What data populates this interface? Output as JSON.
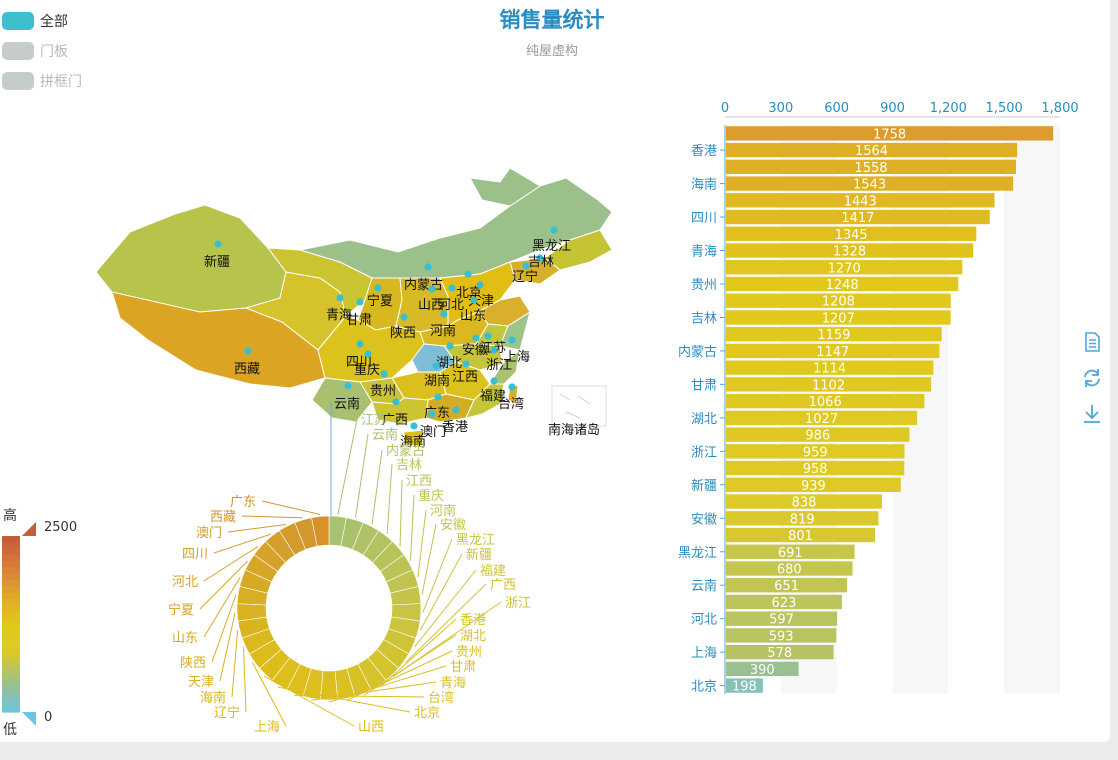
{
  "header": {
    "title": "销售量统计",
    "subtitle": "纯屋虚构"
  },
  "legend": [
    {
      "label": "全部",
      "color": "#3cc0cf",
      "active": true
    },
    {
      "label": "门板",
      "color": "#c5cccb",
      "active": false
    },
    {
      "label": "拼框门",
      "color": "#c5cccb",
      "active": false
    }
  ],
  "visual_map": {
    "min_label": "0",
    "max_label": "2500",
    "high_text": "高",
    "low_text": "低"
  },
  "toolbox": [
    {
      "name": "data-view-icon"
    },
    {
      "name": "restore-icon"
    },
    {
      "name": "save-image-icon"
    }
  ],
  "map_extra": {
    "south_sea_label": "南海诸岛"
  },
  "chart_data": [
    {
      "type": "bar",
      "orientation": "horizontal",
      "xlim": [
        0,
        1800
      ],
      "x_ticks": [
        "0",
        "300",
        "600",
        "900",
        "1,200",
        "1,500",
        "1,800"
      ],
      "labeled_categories": [
        "香港",
        "海南",
        "四川",
        "青海",
        "贵州",
        "吉林",
        "内蒙古",
        "甘肃",
        "湖北",
        "浙江",
        "新疆",
        "安徽",
        "黑龙江",
        "云南",
        "河北",
        "上海",
        "北京"
      ],
      "values": [
        1758,
        1564,
        1558,
        1543,
        1443,
        1417,
        1345,
        1328,
        1270,
        1248,
        1208,
        1207,
        1159,
        1147,
        1114,
        1102,
        1066,
        1027,
        986,
        959,
        958,
        939,
        838,
        819,
        801,
        691,
        680,
        651,
        623,
        597,
        593,
        578,
        390,
        198
      ]
    },
    {
      "type": "pie",
      "donut": true,
      "labels": [
        "江苏",
        "云南",
        "内蒙古",
        "吉林",
        "江西",
        "重庆",
        "河南",
        "安徽",
        "黑龙江",
        "新疆",
        "福建",
        "广西",
        "浙江",
        "香港",
        "湖北",
        "贵州",
        "甘肃",
        "青海",
        "台湾",
        "北京",
        "山西",
        "上海",
        "辽宁",
        "海南",
        "天津",
        "陕西",
        "山东",
        "宁夏",
        "河北",
        "四川",
        "澳门",
        "西藏",
        "广东"
      ]
    },
    {
      "type": "map",
      "region": "China",
      "labels": [
        "新疆",
        "西藏",
        "青海",
        "甘肃",
        "宁夏",
        "内蒙古",
        "山西",
        "北京",
        "天津",
        "河北",
        "山东",
        "黑龙江",
        "吉林",
        "辽宁",
        "陕西",
        "河南",
        "四川",
        "重庆",
        "湖北",
        "安徽",
        "江苏",
        "上海",
        "浙江",
        "湖南",
        "江西",
        "贵州",
        "云南",
        "广西",
        "广东",
        "福建",
        "台湾",
        "香港",
        "澳门",
        "海南"
      ]
    }
  ]
}
